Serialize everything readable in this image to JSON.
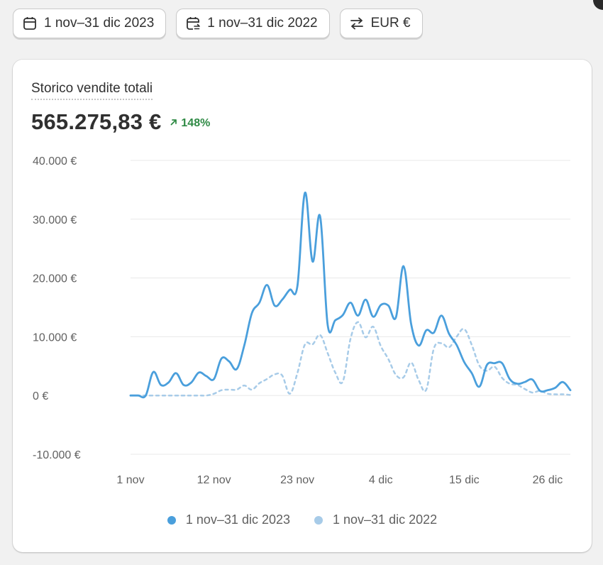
{
  "toolbar": {
    "date_range_label": "1 nov–31 dic 2023",
    "compare_range_label": "1 nov–31 dic 2022",
    "currency_label": "EUR €",
    "icons": [
      "calendar-icon",
      "calendar-compare-icon",
      "currency-exchange-icon"
    ]
  },
  "card": {
    "title": "Storico vendite totali",
    "total": "565.275,83 €",
    "delta": "148%",
    "delta_icon": "arrow-up-right-icon"
  },
  "colors": {
    "current": "#4a9fdc",
    "previous": "#a7cbe8",
    "grid": "#e8e8e8",
    "positive": "#2f8a45"
  },
  "chart_data": {
    "type": "line",
    "title": "Storico vendite totali",
    "xlabel": "",
    "ylabel": "",
    "ylim": [
      -10000,
      40000
    ],
    "y_ticks": [
      40000,
      30000,
      20000,
      10000,
      0,
      -10000
    ],
    "y_tick_labels": [
      "40.000 €",
      "30.000 €",
      "20.000 €",
      "10.000 €",
      "0 €",
      "-10.000 €"
    ],
    "x_tick_labels": [
      "1 nov",
      "12 nov",
      "23 nov",
      "4 dic",
      "15 dic",
      "26 dic"
    ],
    "x_tick_index": [
      0,
      11,
      22,
      33,
      44,
      55
    ],
    "grid": true,
    "legend_position": "bottom",
    "series": [
      {
        "name": "1 nov–31 dic 2023",
        "style": "solid",
        "values": [
          0,
          0,
          0,
          4000,
          1800,
          2200,
          3800,
          1800,
          2200,
          3900,
          3300,
          2800,
          6300,
          5800,
          4500,
          8500,
          14000,
          15800,
          18800,
          15300,
          16300,
          18000,
          18600,
          34500,
          22800,
          30500,
          12000,
          12800,
          13700,
          15800,
          13600,
          16300,
          13400,
          15400,
          15300,
          13300,
          22000,
          12200,
          8500,
          11100,
          10700,
          13600,
          10500,
          8600,
          5700,
          3800,
          1500,
          5200,
          5500,
          5500,
          2800,
          2000,
          2300,
          2700,
          800,
          900,
          1300,
          2300,
          900
        ]
      },
      {
        "name": "1 nov–31 dic 2022",
        "style": "dashed",
        "values": [
          0,
          0,
          0,
          0,
          0,
          0,
          0,
          0,
          0,
          0,
          0,
          300,
          900,
          1000,
          1000,
          1700,
          1000,
          2100,
          2800,
          3600,
          3400,
          300,
          3800,
          8700,
          8700,
          10300,
          7200,
          3900,
          2400,
          9600,
          12500,
          9900,
          11700,
          8400,
          6200,
          3500,
          3100,
          5600,
          2600,
          1000,
          8000,
          8900,
          8200,
          10000,
          11300,
          8600,
          5100,
          4200,
          4900,
          3000,
          2000,
          1800,
          1100,
          500,
          800,
          300,
          200,
          200,
          100
        ]
      }
    ]
  }
}
